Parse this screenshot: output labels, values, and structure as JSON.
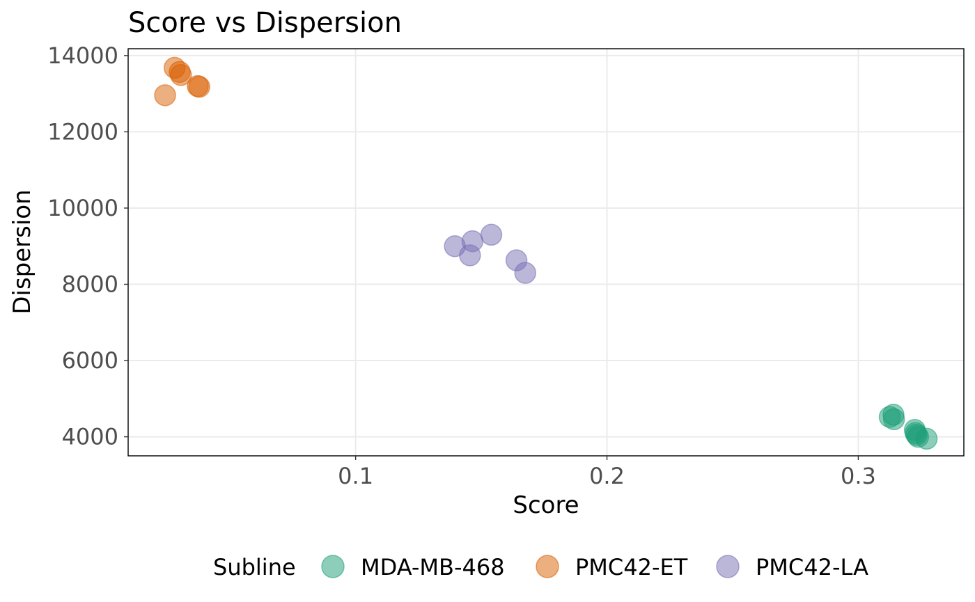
{
  "chart_data": {
    "type": "scatter",
    "title": "Score vs Dispersion",
    "xlabel": "Score",
    "ylabel": "Dispersion",
    "xlim": [
      0.0095,
      0.342
    ],
    "ylim": [
      3500,
      14180
    ],
    "x_ticks": [
      0.1,
      0.2,
      0.3
    ],
    "x_tick_labels": [
      "0.1",
      "0.2",
      "0.3"
    ],
    "y_ticks": [
      4000,
      6000,
      8000,
      10000,
      12000,
      14000
    ],
    "y_tick_labels": [
      "4000",
      "6000",
      "8000",
      "10000",
      "12000",
      "14000"
    ],
    "grid": true,
    "legend": {
      "title": "Subline",
      "placement": "bottom"
    },
    "series": [
      {
        "name": "MDA-MB-468",
        "color": "#1b9e77",
        "points": [
          {
            "x": 0.3125,
            "y": 4520
          },
          {
            "x": 0.314,
            "y": 4580
          },
          {
            "x": 0.3142,
            "y": 4460
          },
          {
            "x": 0.3225,
            "y": 4180
          },
          {
            "x": 0.3228,
            "y": 4100
          },
          {
            "x": 0.3232,
            "y": 4050
          },
          {
            "x": 0.3238,
            "y": 4000
          },
          {
            "x": 0.3272,
            "y": 3950
          }
        ]
      },
      {
        "name": "PMC42-ET",
        "color": "#d95f02",
        "points": [
          {
            "x": 0.0242,
            "y": 12960
          },
          {
            "x": 0.028,
            "y": 13680
          },
          {
            "x": 0.03,
            "y": 13570
          },
          {
            "x": 0.0305,
            "y": 13490
          },
          {
            "x": 0.0372,
            "y": 13200
          },
          {
            "x": 0.0378,
            "y": 13180
          }
        ]
      },
      {
        "name": "PMC42-LA",
        "color": "#7570b3",
        "points": [
          {
            "x": 0.1395,
            "y": 9000
          },
          {
            "x": 0.1455,
            "y": 8760
          },
          {
            "x": 0.1465,
            "y": 9130
          },
          {
            "x": 0.154,
            "y": 9300
          },
          {
            "x": 0.164,
            "y": 8630
          },
          {
            "x": 0.1675,
            "y": 8300
          }
        ]
      }
    ]
  }
}
